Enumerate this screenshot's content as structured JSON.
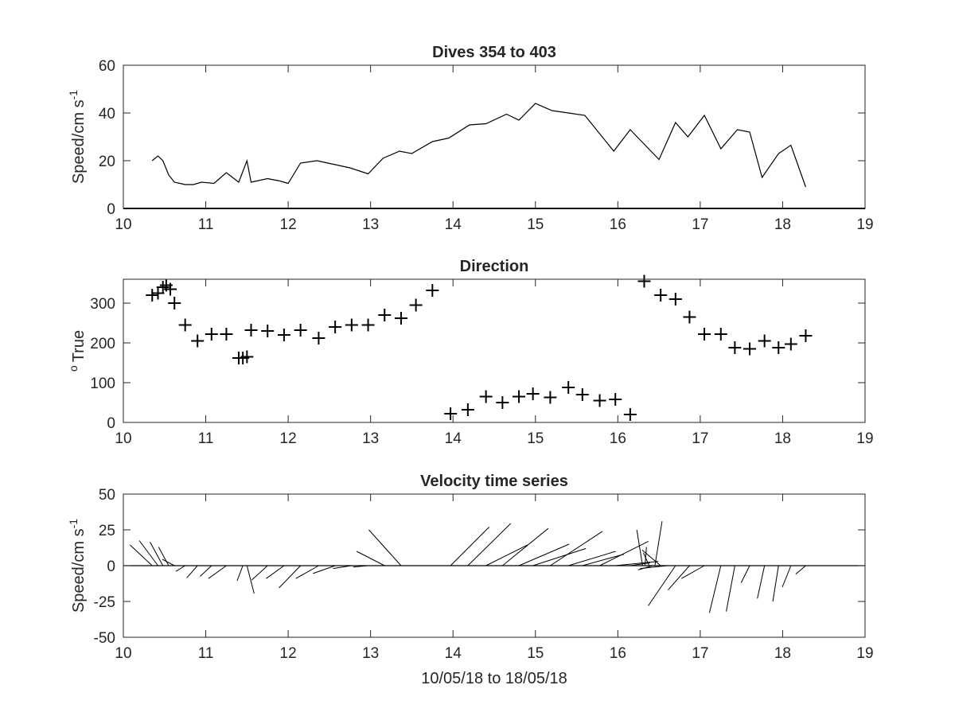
{
  "chart_data": [
    {
      "type": "line",
      "title": "Dives 354 to 403",
      "xlabel": "",
      "ylabel": "Speed/cm s",
      "ylabel_superscript": "-1",
      "xlim": [
        10,
        19
      ],
      "ylim": [
        0,
        60
      ],
      "xticks": [
        10,
        11,
        12,
        13,
        14,
        15,
        16,
        17,
        18,
        19
      ],
      "yticks": [
        0,
        20,
        40,
        60
      ],
      "grid": false,
      "series": [
        {
          "x": [
            10.35,
            10.42,
            10.48,
            10.55,
            10.62,
            10.75,
            10.85,
            10.95,
            11.1,
            11.25,
            11.4,
            11.5,
            11.55,
            11.75,
            11.9,
            12.0,
            12.15,
            12.35,
            12.55,
            12.75,
            12.97,
            13.15,
            13.35,
            13.5,
            13.75,
            13.95,
            14.2,
            14.4,
            14.65,
            14.8,
            15.0,
            15.2,
            15.4,
            15.6,
            15.95,
            16.15,
            16.5,
            16.7,
            16.85,
            17.05,
            17.25,
            17.45,
            17.6,
            17.75,
            17.95,
            18.1,
            18.28
          ],
          "y": [
            20,
            22,
            20,
            14,
            11,
            10,
            10,
            11,
            10.5,
            15,
            11,
            20,
            11,
            12.5,
            11.5,
            10.5,
            19,
            20,
            18.5,
            17,
            14.5,
            21,
            24,
            23,
            28,
            29.5,
            35,
            35.5,
            39.5,
            37,
            44,
            41,
            40,
            39,
            24,
            33,
            20.5,
            36,
            30,
            39,
            25,
            33,
            32,
            13,
            23,
            26.5,
            9
          ]
        }
      ]
    },
    {
      "type": "scatter",
      "title": "Direction",
      "xlabel": "",
      "ylabel": "True",
      "ylabel_superscript": "o",
      "xlim": [
        10,
        19
      ],
      "ylim": [
        0,
        360
      ],
      "xticks": [
        10,
        11,
        12,
        13,
        14,
        15,
        16,
        17,
        18,
        19
      ],
      "yticks": [
        0,
        100,
        200,
        300
      ],
      "marker": "+",
      "grid": false,
      "series": [
        {
          "x": [
            10.35,
            10.42,
            10.48,
            10.52,
            10.57,
            10.62,
            10.75,
            10.9,
            11.07,
            11.25,
            11.4,
            11.45,
            11.5,
            11.55,
            11.75,
            11.95,
            12.15,
            12.37,
            12.57,
            12.77,
            12.97,
            13.17,
            13.37,
            13.55,
            13.75,
            13.97,
            14.18,
            14.4,
            14.6,
            14.8,
            14.97,
            15.18,
            15.4,
            15.57,
            15.78,
            15.97,
            16.15,
            16.32,
            16.52,
            16.7,
            16.87,
            17.05,
            17.25,
            17.42,
            17.6,
            17.78,
            17.95,
            18.1,
            18.28
          ],
          "y": [
            320,
            325,
            340,
            345,
            335,
            300,
            245,
            205,
            222,
            222,
            162,
            162,
            165,
            232,
            230,
            220,
            232,
            212,
            240,
            245,
            245,
            270,
            262,
            295,
            332,
            22,
            32,
            65,
            50,
            65,
            72,
            63,
            88,
            70,
            55,
            58,
            20,
            355,
            320,
            310,
            265,
            222,
            222,
            188,
            185,
            205,
            188,
            197,
            218
          ]
        }
      ]
    },
    {
      "type": "quiver",
      "title": "Velocity time series",
      "xlabel": "10/05/18 to 18/05/18",
      "ylabel": "Speed/cm s",
      "ylabel_superscript": "-1",
      "xlim": [
        10,
        19
      ],
      "ylim": [
        -50,
        50
      ],
      "xticks": [
        10,
        11,
        12,
        13,
        14,
        15,
        16,
        17,
        18,
        19
      ],
      "yticks": [
        -50,
        -25,
        0,
        25,
        50
      ],
      "grid": false,
      "baseline": 0,
      "sticks": [
        {
          "x": 10.35,
          "u": -15.5,
          "v": 14.5
        },
        {
          "x": 10.42,
          "u": -13.0,
          "v": 17.5
        },
        {
          "x": 10.48,
          "u": -9.0,
          "v": 16.5
        },
        {
          "x": 10.55,
          "u": -7.0,
          "v": 13.0
        },
        {
          "x": 10.62,
          "u": -8.5,
          "v": 4.5
        },
        {
          "x": 10.75,
          "u": -6.5,
          "v": -4.0
        },
        {
          "x": 10.9,
          "u": -7.5,
          "v": -8.5
        },
        {
          "x": 11.07,
          "u": -8.0,
          "v": -7.5
        },
        {
          "x": 11.25,
          "u": -12.5,
          "v": -9.0
        },
        {
          "x": 11.45,
          "u": -4.0,
          "v": -10.5
        },
        {
          "x": 11.5,
          "u": 5.0,
          "v": -19.5
        },
        {
          "x": 11.75,
          "u": -11.0,
          "v": -10.0
        },
        {
          "x": 11.95,
          "u": -12.5,
          "v": -9.0
        },
        {
          "x": 12.15,
          "u": -15.0,
          "v": -15.5
        },
        {
          "x": 12.37,
          "u": -16.0,
          "v": -9.0
        },
        {
          "x": 12.57,
          "u": -15.5,
          "v": -5.5
        },
        {
          "x": 12.77,
          "u": -13.0,
          "v": -2.0
        },
        {
          "x": 12.97,
          "u": -10.5,
          "v": -1.0
        },
        {
          "x": 13.17,
          "u": -19.5,
          "v": 10.0
        },
        {
          "x": 13.37,
          "u": -22.5,
          "v": 25.0
        },
        {
          "x": 13.97,
          "u": 27.0,
          "v": 27.0
        },
        {
          "x": 14.18,
          "u": 30.0,
          "v": 29.5
        },
        {
          "x": 14.4,
          "u": 29.0,
          "v": 14.5
        },
        {
          "x": 14.6,
          "u": 32.0,
          "v": 26.0
        },
        {
          "x": 14.8,
          "u": 35.0,
          "v": 15.0
        },
        {
          "x": 14.97,
          "u": 37.0,
          "v": 12.0
        },
        {
          "x": 15.18,
          "u": 36.5,
          "v": 24.0
        },
        {
          "x": 15.4,
          "u": 33.0,
          "v": 10.0
        },
        {
          "x": 15.57,
          "u": 29.0,
          "v": 8.0
        },
        {
          "x": 15.78,
          "u": 34.0,
          "v": 17.0
        },
        {
          "x": 15.97,
          "u": 30.0,
          "v": 3.0
        },
        {
          "x": 16.15,
          "u": 14.0,
          "v": 2.0
        },
        {
          "x": 16.3,
          "u": -4.0,
          "v": 25.0
        },
        {
          "x": 16.33,
          "u": 1.0,
          "v": 13.0
        },
        {
          "x": 16.38,
          "u": -4.0,
          "v": 9.0
        },
        {
          "x": 16.42,
          "u": -10.0,
          "v": -3.0
        },
        {
          "x": 16.45,
          "u": 5.0,
          "v": 31.0
        },
        {
          "x": 16.52,
          "u": -13.0,
          "v": 11.0
        },
        {
          "x": 16.6,
          "u": -19.0,
          "v": -2.0
        },
        {
          "x": 16.7,
          "u": -19.0,
          "v": -28.0
        },
        {
          "x": 16.87,
          "u": -15.0,
          "v": -17.0
        },
        {
          "x": 17.05,
          "u": -16.0,
          "v": -9.0
        },
        {
          "x": 17.25,
          "u": -8.0,
          "v": -33.0
        },
        {
          "x": 17.42,
          "u": -6.0,
          "v": -32.0
        },
        {
          "x": 17.6,
          "u": -6.0,
          "v": -12.0
        },
        {
          "x": 17.78,
          "u": -5.0,
          "v": -23.0
        },
        {
          "x": 17.95,
          "u": -4.0,
          "v": -25.0
        },
        {
          "x": 18.1,
          "u": -6.0,
          "v": -15.0
        },
        {
          "x": 18.28,
          "u": -7.0,
          "v": -6.0
        }
      ]
    }
  ]
}
